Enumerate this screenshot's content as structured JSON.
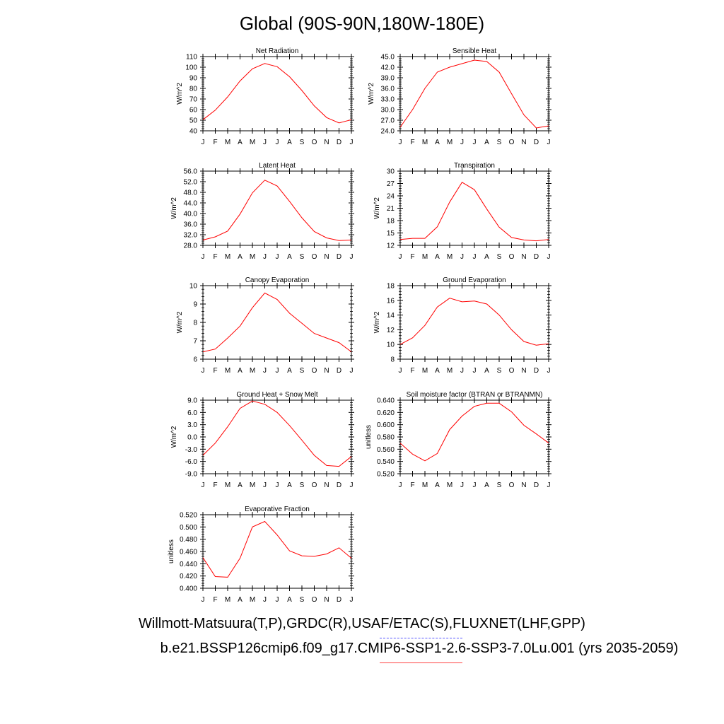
{
  "title": "Global (90S-90N,180W-180E)",
  "legend": {
    "observations": "Willmott-Matsuura(T,P),GRDC(R),USAF/ETAC(S),FLUXNET(LHF,GPP)",
    "case": "b.e21.BSSP126cmip6.f09_g17.CMIP6-SSP1-2.6-SSP3-7.0Lu.001 (yrs 2035-2059)",
    "observations_color": "#5555ff",
    "case_color": "#ff0000"
  },
  "chart_data": [
    {
      "type": "line",
      "title": "Net Radiation",
      "ylabel": "W/m^2",
      "categories": [
        "J",
        "F",
        "M",
        "A",
        "M",
        "J",
        "J",
        "A",
        "S",
        "O",
        "N",
        "D",
        "J"
      ],
      "values": [
        50.5,
        59.5,
        72,
        87,
        98.5,
        103.5,
        100.5,
        91,
        78,
        63.5,
        52.5,
        47.5,
        50.5
      ],
      "ylim": [
        40,
        110
      ],
      "yticks": [
        "40",
        "50",
        "60",
        "70",
        "80",
        "90",
        "100",
        "110"
      ],
      "line_color": "#ff0000"
    },
    {
      "type": "line",
      "title": "Sensible Heat",
      "ylabel": "W/m^2",
      "categories": [
        "J",
        "F",
        "M",
        "A",
        "M",
        "J",
        "J",
        "A",
        "S",
        "O",
        "N",
        "D",
        "J"
      ],
      "values": [
        25.0,
        30.0,
        36.0,
        40.6,
        42.0,
        43.0,
        44.0,
        43.6,
        40.6,
        34.5,
        28.5,
        24.8,
        25.4
      ],
      "ylim": [
        24,
        45
      ],
      "yticks": [
        "24.0",
        "27.0",
        "30.0",
        "33.0",
        "36.0",
        "39.0",
        "42.0",
        "45.0"
      ],
      "line_color": "#ff0000"
    },
    {
      "type": "line",
      "title": "Latent Heat",
      "ylabel": "W/m^2",
      "categories": [
        "J",
        "F",
        "M",
        "A",
        "M",
        "J",
        "J",
        "A",
        "S",
        "O",
        "N",
        "D",
        "J"
      ],
      "values": [
        30.0,
        31.2,
        33.4,
        39.8,
        47.8,
        52.6,
        50.4,
        44.6,
        38.4,
        33.2,
        30.8,
        29.8,
        30.0
      ],
      "ylim": [
        28,
        56
      ],
      "yticks": [
        "28.0",
        "32.0",
        "36.0",
        "40.0",
        "44.0",
        "48.0",
        "52.0",
        "56.0"
      ],
      "line_color": "#ff0000"
    },
    {
      "type": "line",
      "title": "Transpiration",
      "ylabel": "W/m^2",
      "categories": [
        "J",
        "F",
        "M",
        "A",
        "M",
        "J",
        "J",
        "A",
        "S",
        "O",
        "N",
        "D",
        "J"
      ],
      "values": [
        13.4,
        13.7,
        13.7,
        16.5,
        22.5,
        27.3,
        25.5,
        20.8,
        16.4,
        13.9,
        13.3,
        13.1,
        13.4
      ],
      "ylim": [
        12,
        30
      ],
      "yticks": [
        "12",
        "15",
        "18",
        "21",
        "24",
        "27",
        "30"
      ],
      "line_color": "#ff0000"
    },
    {
      "type": "line",
      "title": "Canopy Evaporation",
      "ylabel": "W/m^2",
      "categories": [
        "J",
        "F",
        "M",
        "A",
        "M",
        "J",
        "J",
        "A",
        "S",
        "O",
        "N",
        "D",
        "J"
      ],
      "values": [
        6.4,
        6.55,
        7.15,
        7.8,
        8.8,
        9.6,
        9.25,
        8.5,
        7.95,
        7.4,
        7.15,
        6.9,
        6.4
      ],
      "ylim": [
        6,
        10
      ],
      "yticks": [
        "6",
        "7",
        "8",
        "9",
        "10"
      ],
      "line_color": "#ff0000"
    },
    {
      "type": "line",
      "title": "Ground Evaporation",
      "ylabel": "W/m^2",
      "categories": [
        "J",
        "F",
        "M",
        "A",
        "M",
        "J",
        "J",
        "A",
        "S",
        "O",
        "N",
        "D",
        "J"
      ],
      "values": [
        10.0,
        10.9,
        12.6,
        15.1,
        16.3,
        15.8,
        15.9,
        15.5,
        14.0,
        12.0,
        10.4,
        9.9,
        10.1
      ],
      "ylim": [
        8,
        18
      ],
      "yticks": [
        "8",
        "10",
        "12",
        "14",
        "16",
        "18"
      ],
      "line_color": "#ff0000"
    },
    {
      "type": "line",
      "title": "Ground Heat + Snow Melt",
      "ylabel": "W/m^2",
      "categories": [
        "J",
        "F",
        "M",
        "A",
        "M",
        "J",
        "J",
        "A",
        "S",
        "O",
        "N",
        "D",
        "J"
      ],
      "values": [
        -4.5,
        -1.5,
        2.5,
        7.0,
        8.8,
        8.0,
        6.0,
        2.8,
        -0.8,
        -4.5,
        -7.0,
        -7.2,
        -4.8
      ],
      "ylim": [
        -9,
        9
      ],
      "yticks": [
        "-9.0",
        "-6.0",
        "-3.0",
        "0.0",
        "3.0",
        "6.0",
        "9.0"
      ],
      "line_color": "#ff0000"
    },
    {
      "type": "line",
      "title": "Soil moisture factor (BTRAN or BTRANMN)",
      "ylabel": "unitless",
      "categories": [
        "J",
        "F",
        "M",
        "A",
        "M",
        "J",
        "J",
        "A",
        "S",
        "O",
        "N",
        "D",
        "J"
      ],
      "values": [
        0.57,
        0.552,
        0.541,
        0.553,
        0.592,
        0.614,
        0.63,
        0.635,
        0.635,
        0.621,
        0.599,
        0.585,
        0.57
      ],
      "ylim": [
        0.52,
        0.64
      ],
      "yticks": [
        "0.520",
        "0.540",
        "0.560",
        "0.580",
        "0.600",
        "0.620",
        "0.640"
      ],
      "line_color": "#ff0000"
    },
    {
      "type": "line",
      "title": "Evaporative Fraction",
      "ylabel": "unitless",
      "categories": [
        "J",
        "F",
        "M",
        "A",
        "M",
        "J",
        "J",
        "A",
        "S",
        "O",
        "N",
        "D",
        "J"
      ],
      "values": [
        0.45,
        0.419,
        0.418,
        0.449,
        0.5,
        0.509,
        0.487,
        0.461,
        0.453,
        0.452,
        0.456,
        0.466,
        0.449
      ],
      "ylim": [
        0.4,
        0.52
      ],
      "yticks": [
        "0.400",
        "0.420",
        "0.440",
        "0.460",
        "0.480",
        "0.500",
        "0.520"
      ],
      "line_color": "#ff0000"
    }
  ]
}
